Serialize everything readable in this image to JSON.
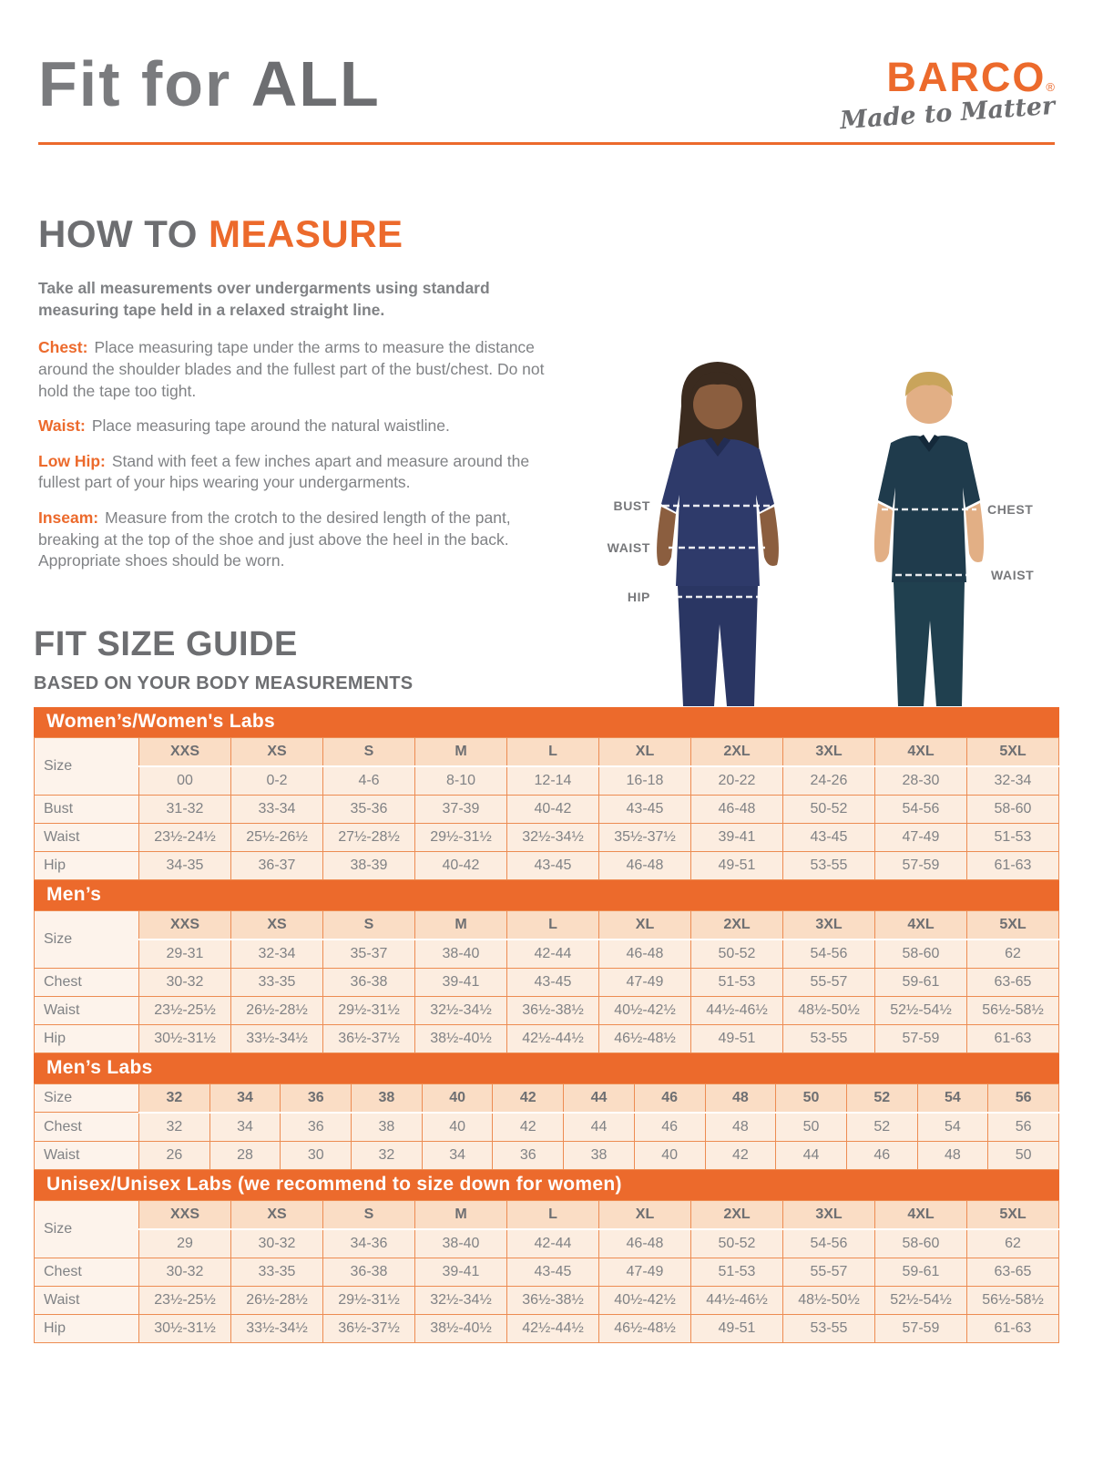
{
  "page": {
    "accent_orange": "#EC6A2C",
    "text_gray": "#808285",
    "heading_gray": "#6D6E71"
  },
  "header": {
    "title_regular": "Fit for ",
    "title_bold": "ALL",
    "brand": "BARCO",
    "registered": "®",
    "tagline": "Made to Matter"
  },
  "how_to_measure": {
    "heading_gray": "HOW TO ",
    "heading_orange": "MEASURE",
    "intro": "Take all measurements over undergarments using standard measuring tape held in a relaxed straight line.",
    "items": [
      {
        "label": "Chest:",
        "text": "Place measuring tape under the arms to measure the distance around the shoulder blades and the fullest part of the bust/chest. Do not hold the tape too tight."
      },
      {
        "label": "Waist:",
        "text": "Place measuring tape around the natural waistline."
      },
      {
        "label": "Low Hip:",
        "text": "Stand with feet a few inches apart and measure around the fullest part of your hips wearing your undergarments."
      },
      {
        "label": "Inseam:",
        "text": "Measure from the crotch to the desired length of the pant, breaking at the top of the shoe and just above the heel in the back. Appropriate shoes should be worn."
      }
    ]
  },
  "figure": {
    "left_labels": [
      "BUST",
      "WAIST",
      "HIP"
    ],
    "right_labels": [
      "CHEST",
      "WAIST"
    ],
    "woman_scrub_color": "#2E3A6A",
    "man_scrub_color": "#1F3B4C"
  },
  "size_guide": {
    "heading": "FIT SIZE GUIDE",
    "subheading": "BASED ON YOUR BODY MEASUREMENTS",
    "size_label": "Size",
    "tables": [
      {
        "title": "Women’s/Women's Labs",
        "sizes": [
          "XXS",
          "XS",
          "S",
          "M",
          "L",
          "XL",
          "2XL",
          "3XL",
          "4XL",
          "5XL"
        ],
        "numeric": [
          "00",
          "0-2",
          "4-6",
          "8-10",
          "12-14",
          "16-18",
          "20-22",
          "24-26",
          "28-30",
          "32-34"
        ],
        "rows": [
          {
            "label": "Bust",
            "values": [
              "31-32",
              "33-34",
              "35-36",
              "37-39",
              "40-42",
              "43-45",
              "46-48",
              "50-52",
              "54-56",
              "58-60"
            ]
          },
          {
            "label": "Waist",
            "values": [
              "23½-24½",
              "25½-26½",
              "27½-28½",
              "29½-31½",
              "32½-34½",
              "35½-37½",
              "39-41",
              "43-45",
              "47-49",
              "51-53"
            ]
          },
          {
            "label": "Hip",
            "values": [
              "34-35",
              "36-37",
              "38-39",
              "40-42",
              "43-45",
              "46-48",
              "49-51",
              "53-55",
              "57-59",
              "61-63"
            ]
          }
        ]
      },
      {
        "title": "Men’s",
        "sizes": [
          "XXS",
          "XS",
          "S",
          "M",
          "L",
          "XL",
          "2XL",
          "3XL",
          "4XL",
          "5XL"
        ],
        "numeric": [
          "29-31",
          "32-34",
          "35-37",
          "38-40",
          "42-44",
          "46-48",
          "50-52",
          "54-56",
          "58-60",
          "62"
        ],
        "rows": [
          {
            "label": "Chest",
            "values": [
              "30-32",
              "33-35",
              "36-38",
              "39-41",
              "43-45",
              "47-49",
              "51-53",
              "55-57",
              "59-61",
              "63-65"
            ]
          },
          {
            "label": "Waist",
            "values": [
              "23½-25½",
              "26½-28½",
              "29½-31½",
              "32½-34½",
              "36½-38½",
              "40½-42½",
              "44½-46½",
              "48½-50½",
              "52½-54½",
              "56½-58½"
            ]
          },
          {
            "label": "Hip",
            "values": [
              "30½-31½",
              "33½-34½",
              "36½-37½",
              "38½-40½",
              "42½-44½",
              "46½-48½",
              "49-51",
              "53-55",
              "57-59",
              "61-63"
            ]
          }
        ]
      },
      {
        "title": "Men’s Labs",
        "sizes": [
          "32",
          "34",
          "36",
          "38",
          "40",
          "42",
          "44",
          "46",
          "48",
          "50",
          "52",
          "54",
          "56"
        ],
        "numeric": null,
        "rows": [
          {
            "label": "Chest",
            "values": [
              "32",
              "34",
              "36",
              "38",
              "40",
              "42",
              "44",
              "46",
              "48",
              "50",
              "52",
              "54",
              "56"
            ]
          },
          {
            "label": "Waist",
            "values": [
              "26",
              "28",
              "30",
              "32",
              "34",
              "36",
              "38",
              "40",
              "42",
              "44",
              "46",
              "48",
              "50"
            ]
          }
        ]
      },
      {
        "title": "Unisex/Unisex Labs (we recommend to size down for women)",
        "sizes": [
          "XXS",
          "XS",
          "S",
          "M",
          "L",
          "XL",
          "2XL",
          "3XL",
          "4XL",
          "5XL"
        ],
        "numeric": [
          "29",
          "30-32",
          "34-36",
          "38-40",
          "42-44",
          "46-48",
          "50-52",
          "54-56",
          "58-60",
          "62"
        ],
        "rows": [
          {
            "label": "Chest",
            "values": [
              "30-32",
              "33-35",
              "36-38",
              "39-41",
              "43-45",
              "47-49",
              "51-53",
              "55-57",
              "59-61",
              "63-65"
            ]
          },
          {
            "label": "Waist",
            "values": [
              "23½-25½",
              "26½-28½",
              "29½-31½",
              "32½-34½",
              "36½-38½",
              "40½-42½",
              "44½-46½",
              "48½-50½",
              "52½-54½",
              "56½-58½"
            ]
          },
          {
            "label": "Hip",
            "values": [
              "30½-31½",
              "33½-34½",
              "36½-37½",
              "38½-40½",
              "42½-44½",
              "46½-48½",
              "49-51",
              "53-55",
              "57-59",
              "61-63"
            ]
          }
        ]
      }
    ]
  }
}
